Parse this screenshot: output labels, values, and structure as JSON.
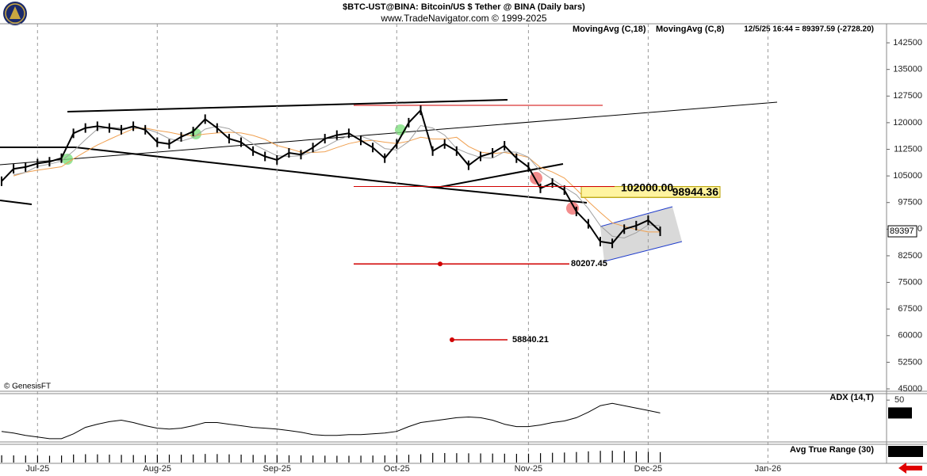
{
  "chart_data": [
    {
      "type": "line",
      "title": "$BTC-UST@BINA:  Bitcoin/US $ Tether @ BINA  (Daily bars)",
      "subtitle": "www.TradeNavigator.com © 1999-2025",
      "info": "12/5/25 16:44 = 89397.59 (-2728.20)",
      "credit": "© GenesisFT",
      "last_label": "89397",
      "color": "#000000",
      "categories": [
        null,
        null,
        null,
        "Jul-25",
        null,
        null,
        null,
        null,
        null,
        null,
        null,
        null,
        null,
        "Aug-25",
        null,
        null,
        null,
        null,
        null,
        null,
        null,
        null,
        null,
        "Sep-25",
        null,
        null,
        null,
        null,
        null,
        null,
        null,
        null,
        null,
        "Oct-25",
        null,
        null,
        null,
        null,
        null,
        null,
        null,
        null,
        null,
        null,
        "Nov-25",
        null,
        null,
        null,
        null,
        null,
        null,
        null,
        null,
        null,
        "Dec-25",
        null,
        null,
        null,
        null,
        null,
        null,
        null,
        null,
        null,
        "Jan-26"
      ],
      "values": [
        103500,
        107000,
        107500,
        108500,
        109000,
        110000,
        117000,
        118500,
        119000,
        118500,
        118000,
        119000,
        118000,
        114500,
        114000,
        116000,
        117500,
        121000,
        118500,
        115500,
        114500,
        112000,
        110500,
        109500,
        111500,
        111000,
        113000,
        115500,
        116500,
        117000,
        115000,
        113000,
        110000,
        114000,
        120000,
        123500,
        112000,
        114000,
        112000,
        108000,
        110500,
        111500,
        113500,
        110000,
        107500,
        101500,
        103000,
        101000,
        95000,
        91500,
        86500,
        86000,
        90000,
        91000,
        92500,
        89397.59,
        null,
        null,
        null,
        null,
        null,
        null,
        null,
        null,
        null
      ],
      "series": [
        {
          "name": "MovingAvg (C,18)",
          "color": "#f0a050",
          "values": [
            null,
            105000,
            106000,
            106600,
            107100,
            107600,
            109800,
            111800,
            113700,
            115300,
            116800,
            118300,
            118500,
            117800,
            117300,
            116600,
            116300,
            116800,
            117100,
            117300,
            117100,
            116400,
            115300,
            113600,
            112700,
            111700,
            111600,
            111800,
            113000,
            114100,
            114800,
            115000,
            114500,
            114100,
            114800,
            115900,
            115400,
            115400,
            115900,
            113300,
            111700,
            111300,
            111600,
            111000,
            110200,
            107400,
            106100,
            104400,
            101200,
            97800,
            94700,
            91800,
            90800,
            89900,
            89200,
            89200,
            null,
            null,
            null,
            null,
            null,
            null,
            null,
            null,
            null
          ]
        },
        {
          "name": "MovingAvg (C,8)",
          "color": "#a0a0a0",
          "values": [
            null,
            105300,
            106000,
            107700,
            108300,
            109200,
            112000,
            115200,
            118200,
            118700,
            118500,
            118500,
            118300,
            117200,
            115500,
            114800,
            115800,
            118200,
            119000,
            118300,
            116200,
            114000,
            112300,
            110700,
            110500,
            110700,
            111800,
            113200,
            115000,
            116300,
            116200,
            115000,
            112700,
            112300,
            114700,
            119200,
            118500,
            116500,
            112700,
            111300,
            110200,
            110000,
            111800,
            111700,
            110300,
            106300,
            104000,
            101800,
            99700,
            95800,
            91000,
            88000,
            87500,
            89000,
            91200,
            91000,
            null,
            null,
            null,
            null,
            null,
            null,
            null,
            null,
            null
          ]
        }
      ],
      "annotations": [
        {
          "value": 102000,
          "label": "102000.00"
        },
        {
          "value": 98944.36,
          "label": "98944.36"
        },
        {
          "value": 80207.45,
          "label": "80207.45"
        },
        {
          "value": 58840.21,
          "label": "58840.21"
        }
      ],
      "ylim": [
        44330,
        147870
      ],
      "yticks": [
        142500,
        135000,
        127500,
        120000,
        112500,
        105000,
        97500,
        90000,
        82500,
        75000,
        67500,
        60000,
        52500,
        45000
      ],
      "grid": true
    },
    {
      "type": "line",
      "title": "ADX (14,T)",
      "color": "#000000",
      "values": [
        17.5,
        15.9,
        13.4,
        11.7,
        10.0,
        10.0,
        15.0,
        21.7,
        25.0,
        27.6,
        29.2,
        26.7,
        23.4,
        20.9,
        20.0,
        20.9,
        23.4,
        26.7,
        26.7,
        25.0,
        23.4,
        21.7,
        20.9,
        20.0,
        18.4,
        16.7,
        14.2,
        13.4,
        13.4,
        14.2,
        14.2,
        15.0,
        15.9,
        17.5,
        22.5,
        26.7,
        28.4,
        30.0,
        31.7,
        32.5,
        31.7,
        29.2,
        25.0,
        22.5,
        22.5,
        24.2,
        26.7,
        28.4,
        31.7,
        37.5,
        44.2,
        46.7,
        44.2,
        41.7,
        39.2,
        36.65
      ],
      "ylim": [
        6.6,
        56.7
      ],
      "yticks": [
        50
      ]
    },
    {
      "type": "bar",
      "title": "Avg True Range (30)",
      "color": "#000000",
      "values": [
        2800,
        2750,
        2700,
        2650,
        2600,
        2700,
        3100,
        3200,
        3150,
        3050,
        2950,
        2900,
        2850,
        3000,
        3050,
        3000,
        3100,
        3300,
        3250,
        3150,
        3050,
        2950,
        2900,
        2850,
        2800,
        2750,
        2700,
        2650,
        2600,
        2600,
        2650,
        2700,
        2750,
        2800,
        3000,
        3200,
        3700,
        3650,
        3600,
        3550,
        3500,
        3450,
        3400,
        3350,
        3400,
        3600,
        3750,
        3850,
        4050,
        4300,
        4500,
        4550,
        4450,
        4300,
        4150,
        3986.42
      ],
      "ylim": [
        0,
        7000
      ]
    }
  ]
}
